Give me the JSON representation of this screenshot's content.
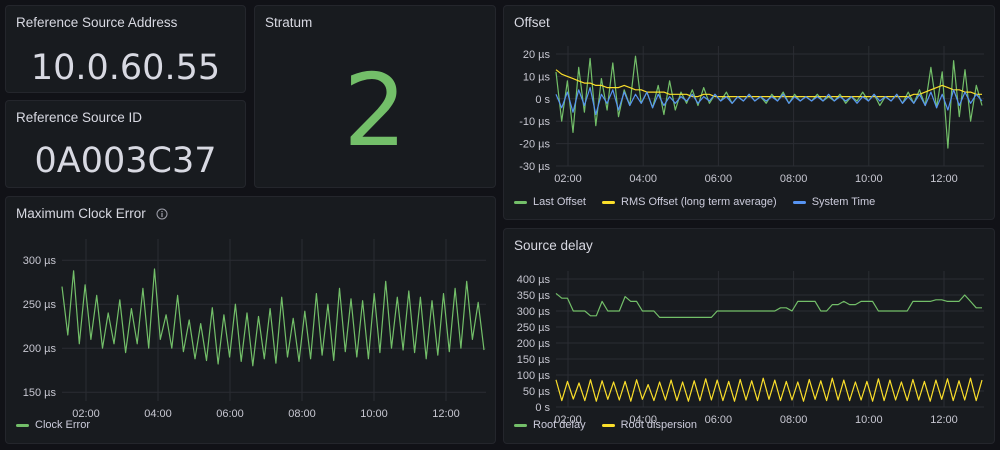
{
  "colors": {
    "green": "#73bf69",
    "yellow": "#fade2a",
    "blue": "#5794f2",
    "grid": "#2a2d33",
    "axis": "#c7c7d1"
  },
  "ref_address": {
    "title": "Reference Source Address",
    "value": "10.0.60.55"
  },
  "ref_id": {
    "title": "Reference Source ID",
    "value": "0A003C37"
  },
  "stratum": {
    "title": "Stratum",
    "value": "2"
  },
  "offset_panel": {
    "title": "Offset",
    "legend": [
      "Last Offset",
      "RMS Offset (long term average)",
      "System Time"
    ]
  },
  "clock_panel": {
    "title": "Maximum Clock Error",
    "info_icon": "info-icon",
    "legend": [
      "Clock Error"
    ]
  },
  "delay_panel": {
    "title": "Source delay",
    "legend": [
      "Root delay",
      "Root dispersion"
    ]
  },
  "chart_data": [
    {
      "id": "offset",
      "type": "line",
      "title": "Offset",
      "x_ticks": [
        "02:00",
        "04:00",
        "06:00",
        "08:00",
        "10:00",
        "12:00"
      ],
      "y_ticks": [
        "20 µs",
        "10 µs",
        "0 s",
        "-10 µs",
        "-20 µs",
        "-30 µs"
      ],
      "ylim": [
        -30,
        20
      ],
      "series": [
        {
          "name": "Last Offset",
          "color": "#73bf69",
          "values": [
            12,
            -10,
            8,
            -15,
            14,
            -6,
            18,
            -12,
            9,
            -5,
            16,
            -8,
            4,
            -3,
            19,
            -2,
            3,
            -4,
            6,
            -7,
            8,
            -5,
            3,
            -2,
            4,
            -3,
            5,
            -2,
            2,
            -1,
            3,
            -2,
            1,
            -1,
            2,
            -1,
            1,
            -2,
            2,
            -1,
            3,
            -2,
            2,
            -1,
            1,
            -1,
            2,
            -1,
            1,
            -1,
            2,
            -2,
            1,
            -1,
            3,
            -1,
            2,
            -3,
            1,
            -1,
            2,
            -2,
            3,
            -2,
            4,
            -3,
            14,
            -4,
            12,
            -22,
            17,
            -8,
            13,
            -10,
            6,
            -3
          ]
        },
        {
          "name": "RMS Offset (long term average)",
          "color": "#fade2a",
          "values": [
            13,
            11,
            10,
            9,
            8,
            7,
            7,
            6,
            6,
            5,
            5,
            5,
            6,
            5,
            4,
            4,
            3,
            3,
            3,
            3,
            2,
            2,
            2,
            2,
            1,
            1,
            2,
            2,
            1,
            1,
            1,
            1,
            1,
            1,
            1,
            1,
            1,
            1,
            1,
            1,
            1,
            1,
            1,
            1,
            1,
            1,
            1,
            1,
            1,
            1,
            1,
            1,
            1,
            1,
            1,
            1,
            1,
            1,
            1,
            1,
            1,
            1,
            1,
            2,
            2,
            3,
            4,
            5,
            6,
            5,
            4,
            4,
            3,
            3,
            2,
            2
          ]
        },
        {
          "name": "System Time",
          "color": "#5794f2",
          "values": [
            2,
            -4,
            3,
            -6,
            4,
            -3,
            5,
            -7,
            2,
            -2,
            4,
            -5,
            3,
            -3,
            2,
            -2,
            3,
            -4,
            2,
            -3,
            1,
            -2,
            1,
            -1,
            2,
            -2,
            1,
            -1,
            2,
            -1,
            1,
            -2,
            1,
            -1,
            2,
            -1,
            1,
            -1,
            1,
            -1,
            2,
            -2,
            1,
            -1,
            1,
            -1,
            1,
            -1,
            2,
            -1,
            1,
            -1,
            1,
            -2,
            1,
            -1,
            2,
            -1,
            1,
            -1,
            2,
            -2,
            1,
            -2,
            2,
            -3,
            3,
            -4,
            2,
            -5,
            4,
            -3,
            3,
            -2,
            2,
            -1
          ]
        }
      ]
    },
    {
      "id": "clock",
      "type": "line",
      "title": "Maximum Clock Error",
      "x_ticks": [
        "02:00",
        "04:00",
        "06:00",
        "08:00",
        "10:00",
        "12:00"
      ],
      "y_ticks": [
        "300 µs",
        "250 µs",
        "200 µs",
        "150 µs"
      ],
      "ylim": [
        140,
        315
      ],
      "series": [
        {
          "name": "Clock Error",
          "color": "#73bf69",
          "values": [
            270,
            215,
            288,
            205,
            272,
            210,
            260,
            200,
            240,
            205,
            255,
            195,
            245,
            205,
            268,
            200,
            290,
            210,
            238,
            200,
            260,
            196,
            232,
            188,
            228,
            186,
            246,
            182,
            238,
            190,
            250,
            185,
            240,
            180,
            236,
            188,
            245,
            183,
            258,
            190,
            234,
            185,
            242,
            188,
            262,
            192,
            250,
            186,
            268,
            196,
            256,
            190,
            254,
            188,
            262,
            195,
            276,
            200,
            258,
            198,
            265,
            195,
            258,
            188,
            254,
            192,
            262,
            196,
            268,
            200,
            276,
            210,
            252,
            198
          ]
        }
      ]
    },
    {
      "id": "delay",
      "type": "line",
      "title": "Source delay",
      "x_ticks": [
        "02:00",
        "04:00",
        "06:00",
        "08:00",
        "10:00",
        "12:00"
      ],
      "y_ticks": [
        "400 µs",
        "350 µs",
        "300 µs",
        "250 µs",
        "200 µs",
        "150 µs",
        "100 µs",
        "50 µs",
        "0 s"
      ],
      "ylim": [
        0,
        400
      ],
      "series": [
        {
          "name": "Root delay",
          "color": "#73bf69",
          "values": [
            355,
            340,
            340,
            300,
            300,
            300,
            285,
            285,
            330,
            300,
            300,
            300,
            345,
            330,
            330,
            300,
            300,
            300,
            280,
            280,
            280,
            280,
            280,
            280,
            280,
            280,
            280,
            280,
            300,
            300,
            300,
            300,
            300,
            300,
            300,
            300,
            300,
            300,
            300,
            310,
            310,
            300,
            330,
            330,
            330,
            330,
            300,
            300,
            320,
            320,
            330,
            320,
            320,
            330,
            330,
            330,
            300,
            300,
            300,
            300,
            300,
            300,
            330,
            330,
            330,
            330,
            335,
            335,
            330,
            330,
            330,
            350,
            330,
            310,
            310
          ]
        },
        {
          "name": "Root dispersion",
          "color": "#fade2a",
          "values": [
            85,
            20,
            80,
            25,
            75,
            20,
            85,
            18,
            82,
            24,
            78,
            22,
            80,
            18,
            85,
            24,
            70,
            20,
            78,
            22,
            84,
            20,
            78,
            18,
            82,
            20,
            88,
            22,
            84,
            20,
            80,
            18,
            86,
            22,
            82,
            20,
            90,
            24,
            84,
            20,
            80,
            22,
            78,
            18,
            86,
            24,
            82,
            20,
            90,
            22,
            84,
            20,
            78,
            22,
            80,
            18,
            88,
            20,
            84,
            22,
            78,
            20,
            86,
            22,
            80,
            18,
            84,
            24,
            88,
            20,
            82,
            22,
            90,
            20,
            84
          ]
        }
      ]
    }
  ]
}
